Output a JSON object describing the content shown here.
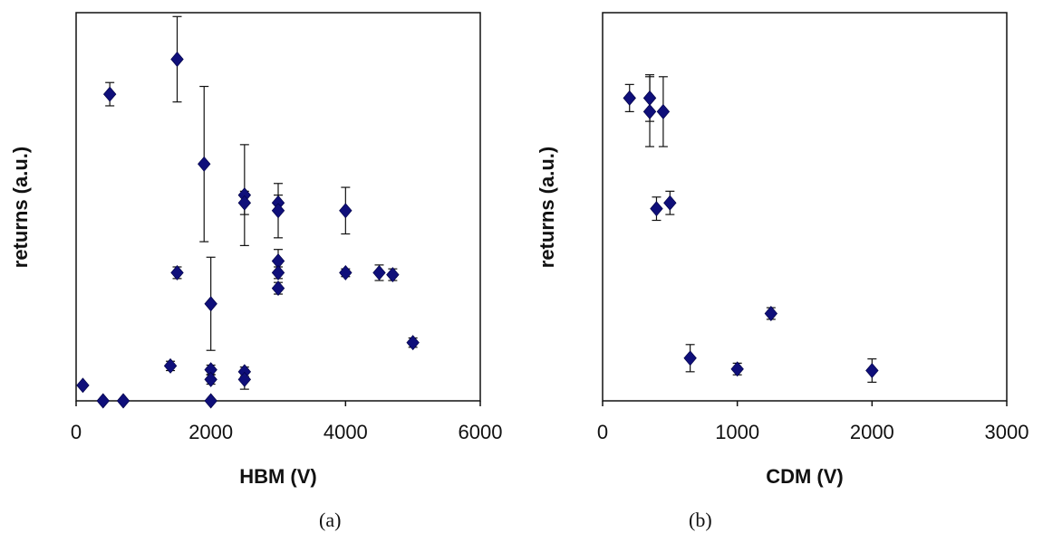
{
  "chart_data": [
    {
      "type": "scatter",
      "caption": "(a)",
      "xlabel": "HBM (V)",
      "ylabel": "returns (a.u.)",
      "xlim": [
        0,
        6000
      ],
      "ylim": [
        0,
        1
      ],
      "xticks": [
        "0",
        "2000",
        "4000",
        "6000"
      ],
      "yticks_shown": false,
      "grid": false,
      "marker": "diamond",
      "color": "#0f0f7a",
      "points": [
        {
          "x": 100,
          "y": 0.04,
          "err": 0
        },
        {
          "x": 400,
          "y": 0.0,
          "err": 0
        },
        {
          "x": 500,
          "y": 0.79,
          "err": 0.03
        },
        {
          "x": 700,
          "y": 0.0,
          "err": 0
        },
        {
          "x": 1400,
          "y": 0.09,
          "err": 0.012
        },
        {
          "x": 1500,
          "y": 0.88,
          "err": 0.11
        },
        {
          "x": 1500,
          "y": 0.33,
          "err": 0.015
        },
        {
          "x": 1900,
          "y": 0.61,
          "err": 0.2
        },
        {
          "x": 2000,
          "y": 0.25,
          "err": 0.12
        },
        {
          "x": 2000,
          "y": 0.08,
          "err": 0.012
        },
        {
          "x": 2000,
          "y": 0.055,
          "err": 0.012
        },
        {
          "x": 2000,
          "y": 0.0,
          "err": 0
        },
        {
          "x": 2500,
          "y": 0.53,
          "err": 0.13
        },
        {
          "x": 2500,
          "y": 0.51,
          "err": 0.03
        },
        {
          "x": 2500,
          "y": 0.075,
          "err": 0.012
        },
        {
          "x": 2500,
          "y": 0.055,
          "err": 0.025
        },
        {
          "x": 3000,
          "y": 0.51,
          "err": 0.02
        },
        {
          "x": 3000,
          "y": 0.49,
          "err": 0.07
        },
        {
          "x": 3000,
          "y": 0.36,
          "err": 0.03
        },
        {
          "x": 3000,
          "y": 0.33,
          "err": 0.015
        },
        {
          "x": 3000,
          "y": 0.29,
          "err": 0.015
        },
        {
          "x": 4000,
          "y": 0.49,
          "err": 0.06
        },
        {
          "x": 4000,
          "y": 0.33,
          "err": 0.01
        },
        {
          "x": 4500,
          "y": 0.33,
          "err": 0.02
        },
        {
          "x": 4700,
          "y": 0.325,
          "err": 0.015
        },
        {
          "x": 5000,
          "y": 0.15,
          "err": 0.012
        }
      ]
    },
    {
      "type": "scatter",
      "caption": "(b)",
      "xlabel": "CDM (V)",
      "ylabel": "returns (a.u.)",
      "xlim": [
        0,
        3000
      ],
      "ylim": [
        0,
        1
      ],
      "xticks": [
        "0",
        "1000",
        "2000",
        "3000"
      ],
      "yticks_shown": false,
      "grid": false,
      "marker": "diamond",
      "color": "#0f0f7a",
      "points": [
        {
          "x": 200,
          "y": 0.78,
          "err": 0.035
        },
        {
          "x": 350,
          "y": 0.78,
          "err": 0.06
        },
        {
          "x": 350,
          "y": 0.745,
          "err": 0.09
        },
        {
          "x": 450,
          "y": 0.745,
          "err": 0.09
        },
        {
          "x": 400,
          "y": 0.495,
          "err": 0.03
        },
        {
          "x": 500,
          "y": 0.51,
          "err": 0.03
        },
        {
          "x": 650,
          "y": 0.11,
          "err": 0.035
        },
        {
          "x": 1000,
          "y": 0.082,
          "err": 0.015
        },
        {
          "x": 1250,
          "y": 0.225,
          "err": 0.015
        },
        {
          "x": 2000,
          "y": 0.078,
          "err": 0.03
        }
      ]
    }
  ]
}
